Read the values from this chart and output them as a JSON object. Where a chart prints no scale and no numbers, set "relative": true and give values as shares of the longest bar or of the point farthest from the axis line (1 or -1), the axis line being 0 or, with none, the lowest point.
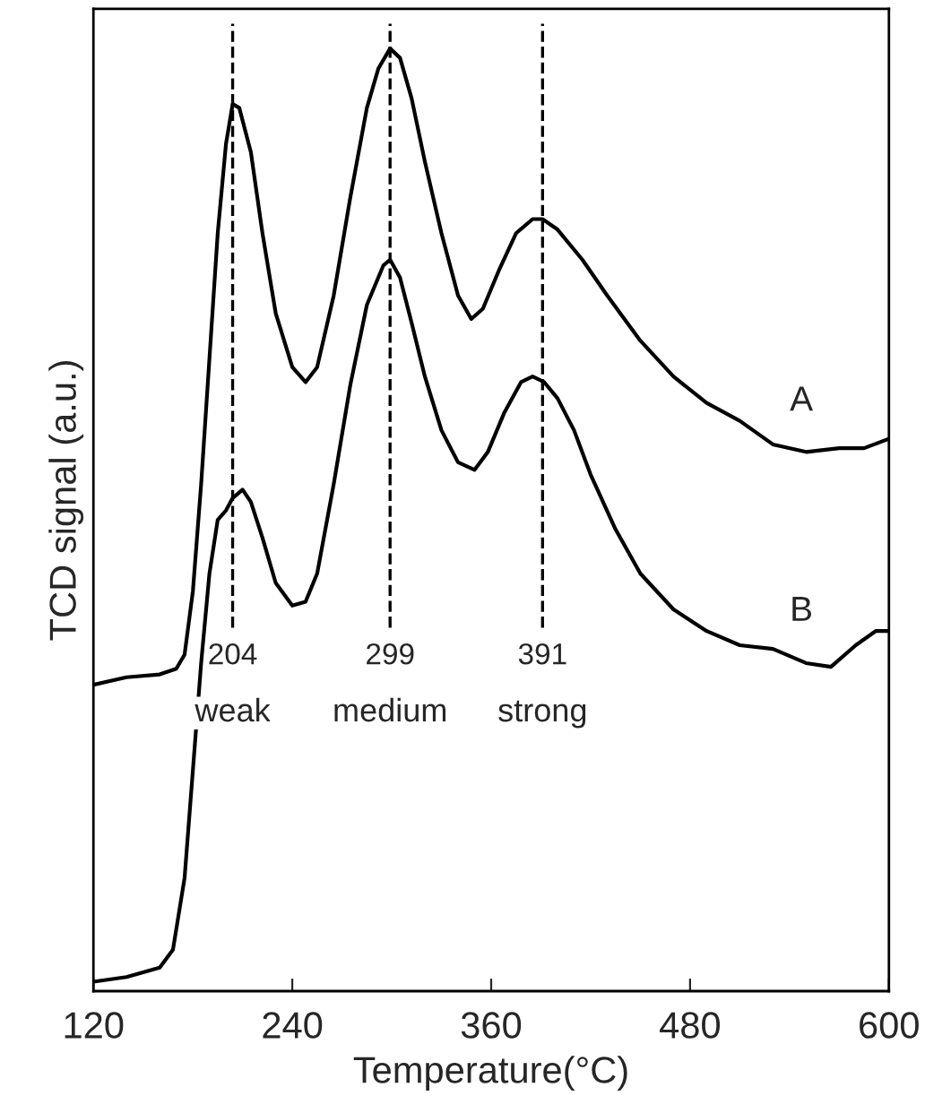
{
  "chart_data": {
    "type": "line",
    "relative": true,
    "xlabel": "Temperature(°C)",
    "ylabel": "TCD signal (a.u.)",
    "xlim": [
      120,
      600
    ],
    "xticks": [
      120,
      240,
      360,
      480,
      600
    ],
    "legend": false,
    "grid": false,
    "marker": "none",
    "line_style": "solid",
    "series": [
      {
        "name": "A",
        "color": "#000000",
        "x": [
          120,
          140,
          160,
          170,
          175,
          180,
          185,
          190,
          195,
          200,
          204,
          208,
          215,
          222,
          230,
          240,
          248,
          255,
          265,
          275,
          285,
          292,
          299,
          305,
          312,
          320,
          330,
          340,
          348,
          355,
          365,
          375,
          385,
          391,
          400,
          415,
          430,
          450,
          470,
          490,
          510,
          530,
          550,
          570,
          585,
          600
        ],
        "values": [
          0.325,
          0.333,
          0.336,
          0.342,
          0.357,
          0.424,
          0.538,
          0.671,
          0.804,
          0.899,
          0.941,
          0.937,
          0.89,
          0.804,
          0.719,
          0.662,
          0.646,
          0.662,
          0.738,
          0.842,
          0.937,
          0.979,
          1.0,
          0.99,
          0.947,
          0.88,
          0.804,
          0.738,
          0.713,
          0.724,
          0.766,
          0.804,
          0.819,
          0.819,
          0.808,
          0.776,
          0.738,
          0.69,
          0.652,
          0.624,
          0.605,
          0.58,
          0.572,
          0.576,
          0.576,
          0.586
        ]
      },
      {
        "name": "B",
        "color": "#000000",
        "x": [
          120,
          140,
          160,
          168,
          175,
          180,
          185,
          190,
          195,
          200,
          204,
          210,
          215,
          222,
          230,
          240,
          248,
          255,
          265,
          275,
          285,
          295,
          299,
          305,
          312,
          320,
          330,
          340,
          350,
          358,
          368,
          378,
          385,
          392,
          400,
          410,
          420,
          435,
          450,
          470,
          490,
          510,
          530,
          550,
          565,
          580,
          592,
          600
        ],
        "values": [
          0.01,
          0.015,
          0.025,
          0.044,
          0.12,
          0.234,
          0.348,
          0.443,
          0.5,
          0.51,
          0.523,
          0.532,
          0.519,
          0.481,
          0.433,
          0.409,
          0.413,
          0.443,
          0.538,
          0.643,
          0.728,
          0.77,
          0.776,
          0.757,
          0.709,
          0.652,
          0.595,
          0.561,
          0.553,
          0.572,
          0.614,
          0.646,
          0.652,
          0.646,
          0.629,
          0.595,
          0.548,
          0.49,
          0.443,
          0.405,
          0.382,
          0.367,
          0.363,
          0.348,
          0.344,
          0.367,
          0.382,
          0.382
        ]
      }
    ],
    "ref_lines": [
      {
        "axis": "x",
        "value": 204,
        "label": "204",
        "line_style": "dashed",
        "color": "#000000"
      },
      {
        "axis": "x",
        "value": 299,
        "label": "299",
        "line_style": "dashed",
        "color": "#000000"
      },
      {
        "axis": "x",
        "value": 391,
        "label": "391",
        "line_style": "dashed",
        "color": "#000000"
      }
    ],
    "annotations": [
      "weak",
      "medium",
      "strong"
    ]
  }
}
